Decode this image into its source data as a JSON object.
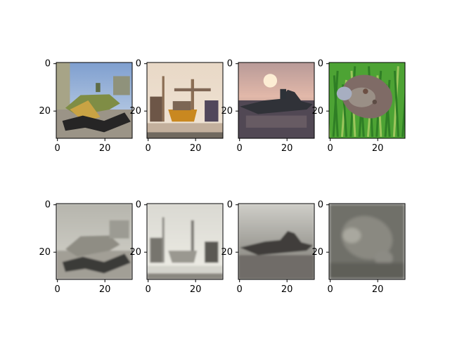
{
  "chart_data": [
    {
      "type": "image",
      "image_content": "color airplane on tarmac",
      "mode": "color",
      "image_size": [
        32,
        32
      ],
      "xticks": [
        0,
        20
      ],
      "yticks": [
        0,
        20
      ],
      "xlim": [
        -0.5,
        31.5
      ],
      "ylim": [
        31.5,
        -0.5
      ]
    },
    {
      "type": "image",
      "image_content": "color ship in harbor",
      "mode": "color",
      "image_size": [
        32,
        32
      ],
      "xticks": [
        0,
        20
      ],
      "yticks": [
        0,
        20
      ],
      "xlim": [
        -0.5,
        31.5
      ],
      "ylim": [
        31.5,
        -0.5
      ]
    },
    {
      "type": "image",
      "image_content": "color ship at sunset",
      "mode": "color",
      "image_size": [
        32,
        32
      ],
      "xticks": [
        0,
        20
      ],
      "yticks": [
        0,
        20
      ],
      "xlim": [
        -0.5,
        31.5
      ],
      "ylim": [
        31.5,
        -0.5
      ]
    },
    {
      "type": "image",
      "image_content": "color frog on grass",
      "mode": "color",
      "image_size": [
        32,
        32
      ],
      "xticks": [
        0,
        20
      ],
      "yticks": [
        0,
        20
      ],
      "xlim": [
        -0.5,
        31.5
      ],
      "ylim": [
        31.5,
        -0.5
      ]
    },
    {
      "type": "image",
      "image_content": "blurred grayscale airplane",
      "mode": "grayscale",
      "image_size": [
        32,
        32
      ],
      "xticks": [
        0,
        20
      ],
      "yticks": [
        0,
        20
      ],
      "xlim": [
        -0.5,
        31.5
      ],
      "ylim": [
        31.5,
        -0.5
      ]
    },
    {
      "type": "image",
      "image_content": "blurred grayscale ship in harbor",
      "mode": "grayscale",
      "image_size": [
        32,
        32
      ],
      "xticks": [
        0,
        20
      ],
      "yticks": [
        0,
        20
      ],
      "xlim": [
        -0.5,
        31.5
      ],
      "ylim": [
        31.5,
        -0.5
      ]
    },
    {
      "type": "image",
      "image_content": "blurred grayscale ship at sunset",
      "mode": "grayscale",
      "image_size": [
        32,
        32
      ],
      "xticks": [
        0,
        20
      ],
      "yticks": [
        0,
        20
      ],
      "xlim": [
        -0.5,
        31.5
      ],
      "ylim": [
        31.5,
        -0.5
      ]
    },
    {
      "type": "image",
      "image_content": "blurred grayscale frog",
      "mode": "grayscale",
      "image_size": [
        32,
        32
      ],
      "xticks": [
        0,
        20
      ],
      "yticks": [
        0,
        20
      ],
      "xlim": [
        -0.5,
        31.5
      ],
      "ylim": [
        31.5,
        -0.5
      ]
    }
  ],
  "colors": {
    "background": "#ffffff",
    "axis": "#000000"
  }
}
